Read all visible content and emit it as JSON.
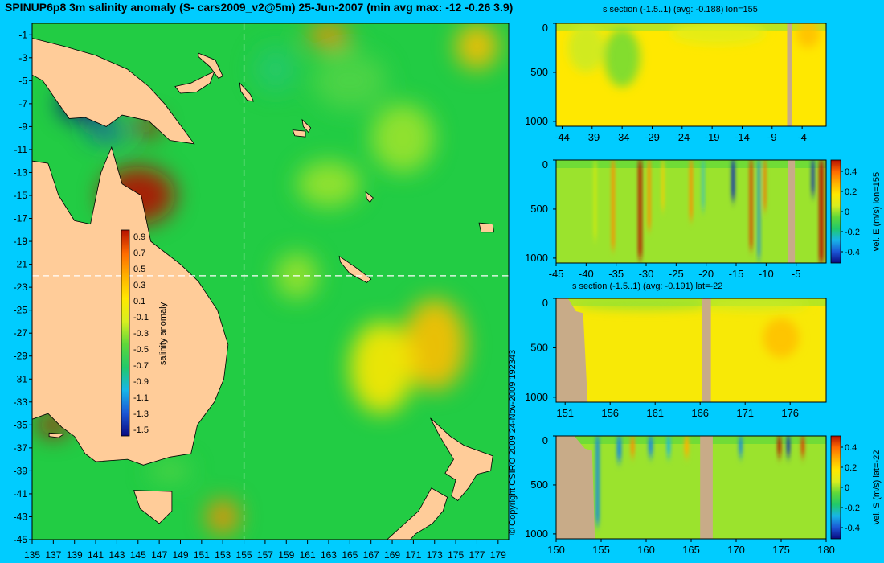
{
  "title": "SPINUP6p8 3m salinity anomaly (S- cars2009_v2@5m) 25-Jun-2007 (min avg max: -12 -0.26 3.9)",
  "copyright": "© Copyright CSIRO 2009   24-Nov-2009 192343",
  "colors": {
    "background": "#00ccff",
    "land": "#ffcc99",
    "section_land": "#c8ab88",
    "ocean_mid": "#22cc44"
  },
  "colormap": [
    "#0a0a80",
    "#1b57d6",
    "#17b6e8",
    "#21c96a",
    "#5ed83a",
    "#d8ee20",
    "#ffe800",
    "#ffb000",
    "#ff6a00",
    "#b41000"
  ],
  "chart_data": [
    {
      "type": "heatmap",
      "title": "SPINUP6p8 3m salinity anomaly (S- cars2009_v2@5m) 25-Jun-2007 (min avg max: -12 -0.26 3.9)",
      "xlabel": "",
      "ylabel": "",
      "xlim": [
        135,
        180
      ],
      "ylim": [
        -45,
        0
      ],
      "x_ticks": [
        135,
        137,
        139,
        141,
        143,
        145,
        147,
        149,
        151,
        153,
        155,
        157,
        159,
        161,
        163,
        165,
        167,
        169,
        171,
        173,
        175,
        177,
        179
      ],
      "y_ticks": [
        -1,
        -3,
        -5,
        -7,
        -9,
        -11,
        -13,
        -15,
        -17,
        -19,
        -21,
        -23,
        -25,
        -27,
        -29,
        -31,
        -33,
        -35,
        -37,
        -39,
        -41,
        -43,
        -45
      ],
      "section_lines": {
        "lon": 155,
        "lat": -22
      },
      "colorbar": {
        "label": "salinity anomaly",
        "ticks": [
          "0.9",
          "0.7",
          "0.5",
          "0.3",
          "0.1",
          "-0.1",
          "-0.3",
          "-0.5",
          "-0.7",
          "-0.9",
          "-1.1",
          "-1.3",
          "-1.5"
        ],
        "range": [
          -1.5,
          0.9
        ]
      },
      "land": [
        {
          "name": "Papua",
          "points": [
            [
              135,
              -1.3
            ],
            [
              138,
              -2
            ],
            [
              141,
              -2.8
            ],
            [
              144,
              -4
            ],
            [
              146,
              -5.5
            ],
            [
              147.5,
              -7
            ],
            [
              149.5,
              -9.5
            ],
            [
              150.3,
              -10.5
            ],
            [
              148,
              -10.2
            ],
            [
              146,
              -8.5
            ],
            [
              143.5,
              -8
            ],
            [
              142,
              -9
            ],
            [
              140,
              -8.2
            ],
            [
              138.5,
              -8.3
            ],
            [
              137.5,
              -7
            ],
            [
              136,
              -5
            ],
            [
              135,
              -4.5
            ]
          ]
        },
        {
          "name": "Australia",
          "points": [
            [
              135,
              -12
            ],
            [
              136.5,
              -12.2
            ],
            [
              137.5,
              -15
            ],
            [
              139,
              -17.2
            ],
            [
              140.5,
              -17.5
            ],
            [
              141.5,
              -13
            ],
            [
              142.5,
              -10.8
            ],
            [
              143.5,
              -14
            ],
            [
              145.3,
              -15
            ],
            [
              146.2,
              -19
            ],
            [
              149,
              -21
            ],
            [
              150.7,
              -22.5
            ],
            [
              152.5,
              -25
            ],
            [
              153.5,
              -28
            ],
            [
              153.1,
              -31
            ],
            [
              152.2,
              -33
            ],
            [
              150.6,
              -35
            ],
            [
              150,
              -37.5
            ],
            [
              148,
              -37.8
            ],
            [
              145.5,
              -38.5
            ],
            [
              144,
              -38
            ],
            [
              141,
              -38.2
            ],
            [
              140,
              -37.5
            ],
            [
              139,
              -36
            ],
            [
              137.8,
              -35.2
            ],
            [
              136.5,
              -34
            ],
            [
              135,
              -34.5
            ]
          ]
        },
        {
          "name": "Tasmania",
          "points": [
            [
              144.6,
              -40.7
            ],
            [
              148.2,
              -40.8
            ],
            [
              148.2,
              -42.5
            ],
            [
              147,
              -43.6
            ],
            [
              145.2,
              -42.3
            ]
          ]
        },
        {
          "name": "Kangaroo Is",
          "points": [
            [
              136.6,
              -35.7
            ],
            [
              138,
              -35.8
            ],
            [
              137.5,
              -36.1
            ],
            [
              136.6,
              -36
            ]
          ]
        },
        {
          "name": "NZ North",
          "points": [
            [
              172.6,
              -34.4
            ],
            [
              174.5,
              -36
            ],
            [
              175.8,
              -36.8
            ],
            [
              178.5,
              -37.7
            ],
            [
              178.3,
              -39
            ],
            [
              177,
              -39.3
            ],
            [
              176.2,
              -40.5
            ],
            [
              175.2,
              -41.6
            ],
            [
              174.6,
              -41.2
            ],
            [
              175,
              -39.8
            ],
            [
              174,
              -39.2
            ],
            [
              174.8,
              -38
            ],
            [
              173.5,
              -36
            ]
          ]
        },
        {
          "name": "NZ South",
          "points": [
            [
              172.7,
              -40.5
            ],
            [
              174.2,
              -41.3
            ],
            [
              173.8,
              -42.5
            ],
            [
              172.8,
              -43.6
            ],
            [
              171.2,
              -44.5
            ],
            [
              170.6,
              -45.1
            ],
            [
              168.5,
              -45
            ],
            [
              171.5,
              -42.5
            ]
          ]
        },
        {
          "name": "New Caledonia",
          "points": [
            [
              164,
              -20.3
            ],
            [
              165.6,
              -21.3
            ],
            [
              167,
              -22.3
            ],
            [
              166.6,
              -22.6
            ],
            [
              165,
              -21.8
            ],
            [
              164.1,
              -20.8
            ]
          ]
        },
        {
          "name": "New Britain",
          "points": [
            [
              148.5,
              -5.5
            ],
            [
              150,
              -5.2
            ],
            [
              151.5,
              -4.5
            ],
            [
              152.2,
              -4.2
            ],
            [
              151.8,
              -5.2
            ],
            [
              150.5,
              -6
            ],
            [
              149,
              -6.1
            ]
          ]
        },
        {
          "name": "New Ireland",
          "points": [
            [
              150.7,
              -2.6
            ],
            [
              152.3,
              -3.2
            ],
            [
              153,
              -4.6
            ],
            [
              152.6,
              -4.8
            ],
            [
              151.8,
              -3.8
            ],
            [
              150.7,
              -2.9
            ]
          ]
        },
        {
          "name": "Bougainville",
          "points": [
            [
              154.6,
              -5.2
            ],
            [
              155.6,
              -6.2
            ],
            [
              155.9,
              -6.8
            ],
            [
              155.3,
              -6.7
            ],
            [
              154.7,
              -5.9
            ]
          ]
        },
        {
          "name": "Guadalcanal",
          "points": [
            [
              159.6,
              -9.3
            ],
            [
              160.8,
              -9.4
            ],
            [
              160.8,
              -9.9
            ],
            [
              159.8,
              -9.8
            ]
          ]
        },
        {
          "name": "Malaita",
          "points": [
            [
              160.5,
              -8.4
            ],
            [
              161.3,
              -9.1
            ],
            [
              161.1,
              -9.5
            ],
            [
              160.6,
              -9
            ]
          ]
        },
        {
          "name": "Vanuatu Santo",
          "points": [
            [
              166.5,
              -14.7
            ],
            [
              167.2,
              -15.2
            ],
            [
              166.9,
              -15.6
            ],
            [
              166.6,
              -15.3
            ]
          ]
        },
        {
          "name": "Fiji",
          "points": [
            [
              177.2,
              -17.4
            ],
            [
              178.5,
              -17.5
            ],
            [
              178.6,
              -18.2
            ],
            [
              177.4,
              -18.2
            ]
          ]
        }
      ],
      "anomaly_patches": [
        {
          "lon": 145,
          "lat": -15,
          "value": 0.9,
          "rx": 3.5,
          "ry": 2.5
        },
        {
          "lon": 146,
          "lat": -9,
          "value": 0.9,
          "rx": 1.2,
          "ry": 0.8
        },
        {
          "lon": 140,
          "lat": -7,
          "value": -1.5,
          "rx": 2.5,
          "ry": 1.5
        },
        {
          "lon": 142,
          "lat": -9.5,
          "value": -1.3,
          "rx": 2,
          "ry": 0.6
        },
        {
          "lon": 137,
          "lat": -35,
          "value": 0.9,
          "rx": 1.5,
          "ry": 1.0
        },
        {
          "lon": 158,
          "lat": -4,
          "value": -0.7,
          "rx": 2,
          "ry": 2
        },
        {
          "lon": 165,
          "lat": -5,
          "value": -0.5,
          "rx": 3.5,
          "ry": 2.5
        },
        {
          "lon": 170,
          "lat": -10,
          "value": -0.3,
          "rx": 3,
          "ry": 3
        },
        {
          "lon": 163,
          "lat": -14,
          "value": -0.3,
          "rx": 3,
          "ry": 2
        },
        {
          "lon": 173,
          "lat": -28,
          "value": 0.3,
          "rx": 3,
          "ry": 4
        },
        {
          "lon": 168,
          "lat": -30,
          "value": 0.1,
          "rx": 3,
          "ry": 4
        },
        {
          "lon": 177,
          "lat": -2,
          "value": 0.3,
          "rx": 2,
          "ry": 2
        },
        {
          "lon": 163,
          "lat": -1,
          "value": 0.5,
          "rx": 2,
          "ry": 1
        },
        {
          "lon": 160,
          "lat": -22,
          "value": -0.3,
          "rx": 2,
          "ry": 2
        },
        {
          "lon": 148,
          "lat": -39,
          "value": -0.5,
          "rx": 2,
          "ry": 1
        },
        {
          "lon": 153,
          "lat": -43,
          "value": 0.5,
          "rx": 1.5,
          "ry": 1.5
        }
      ]
    },
    {
      "type": "heatmap",
      "title": "s section (-1.5..1) (avg: -0.188) lon=155",
      "xlim": [
        -45,
        0
      ],
      "ylim": [
        1050,
        0
      ],
      "x_ticks": [
        -44,
        -39,
        -34,
        -29,
        -24,
        -19,
        -14,
        -9,
        -4
      ],
      "y_ticks": [
        0,
        500,
        1000
      ],
      "land_bands": [
        [
          -6.5,
          -5.7
        ]
      ],
      "base_value": 0.1,
      "patches": [
        {
          "x": -34,
          "y": 350,
          "value": -0.4,
          "rx": 3,
          "ry": 300
        },
        {
          "x": -40,
          "y": 250,
          "value": -0.2,
          "rx": 3,
          "ry": 250
        },
        {
          "x": -18,
          "y": 100,
          "value": -0.1,
          "rx": 8,
          "ry": 120
        },
        {
          "x": -3,
          "y": 100,
          "value": 0.3,
          "rx": 2,
          "ry": 150
        }
      ]
    },
    {
      "type": "heatmap",
      "title": "",
      "xlim": [
        -45,
        0
      ],
      "ylim": [
        1050,
        0
      ],
      "x_ticks": [
        -45,
        -40,
        -35,
        -30,
        -25,
        -20,
        -15,
        -10,
        -5
      ],
      "y_ticks": [
        0,
        500,
        1000
      ],
      "land_bands": [
        [
          -6.3,
          -5.2
        ]
      ],
      "base_value": 0,
      "colorbar": {
        "label": "vel. E (m/s) lon=155",
        "ticks": [
          "0.4",
          "0.2",
          "0",
          "-0.2",
          "-0.4"
        ],
        "range": [
          -0.45,
          0.45
        ]
      },
      "streaks": [
        {
          "x": -35.5,
          "w": 0.5,
          "value": 0.3,
          "depth": 900
        },
        {
          "x": -31.0,
          "w": 0.6,
          "value": 0.45,
          "depth": 1000
        },
        {
          "x": -29.5,
          "w": 0.5,
          "value": 0.3,
          "depth": 700
        },
        {
          "x": -27.2,
          "w": 0.4,
          "value": 0.2,
          "depth": 500
        },
        {
          "x": -22.5,
          "w": 0.5,
          "value": 0.3,
          "depth": 600
        },
        {
          "x": -20.5,
          "w": 0.3,
          "value": -0.25,
          "depth": 500
        },
        {
          "x": -15.5,
          "w": 0.6,
          "value": -0.4,
          "depth": 400
        },
        {
          "x": -12.5,
          "w": 0.5,
          "value": 0.4,
          "depth": 900
        },
        {
          "x": -11.2,
          "w": 0.4,
          "value": -0.3,
          "depth": 1000
        },
        {
          "x": -10.2,
          "w": 0.4,
          "value": 0.35,
          "depth": 500
        },
        {
          "x": -2.2,
          "w": 0.5,
          "value": -0.4,
          "depth": 350
        },
        {
          "x": -0.8,
          "w": 0.7,
          "value": 0.45,
          "depth": 1050
        },
        {
          "x": -38.5,
          "w": 0.3,
          "value": 0.1,
          "depth": 800
        }
      ]
    },
    {
      "type": "heatmap",
      "title": "s section (-1.5..1) (avg: -0.191) lat=-22",
      "xlim": [
        150,
        180
      ],
      "ylim": [
        1050,
        0
      ],
      "x_ticks": [
        151,
        156,
        161,
        166,
        171,
        176
      ],
      "y_ticks": [
        0,
        500,
        1000
      ],
      "land_bands": [
        [
          166.2,
          167.2
        ]
      ],
      "shelf": [
        [
          150,
          0
        ],
        [
          151.3,
          0
        ],
        [
          152.2,
          130
        ],
        [
          153.0,
          150
        ],
        [
          153.5,
          1050
        ],
        [
          150,
          1050
        ]
      ],
      "base_value": 0.05,
      "patches": [
        {
          "x": 175,
          "y": 400,
          "value": 0.3,
          "rx": 2,
          "ry": 200
        },
        {
          "x": 160,
          "y": 60,
          "value": -0.3,
          "rx": 8,
          "ry": 60
        },
        {
          "x": 172,
          "y": 60,
          "value": -0.2,
          "rx": 6,
          "ry": 60
        }
      ]
    },
    {
      "type": "heatmap",
      "title": "",
      "xlim": [
        150,
        180
      ],
      "ylim": [
        1050,
        0
      ],
      "x_ticks": [
        150,
        155,
        160,
        165,
        170,
        175,
        180
      ],
      "y_ticks": [
        0,
        500,
        1000
      ],
      "land_bands": [
        [
          166.0,
          167.4
        ]
      ],
      "shelf": [
        [
          150,
          0
        ],
        [
          152.0,
          0
        ],
        [
          153.2,
          130
        ],
        [
          154.0,
          150
        ],
        [
          154.3,
          1050
        ],
        [
          150,
          1050
        ]
      ],
      "base_value": 0,
      "colorbar": {
        "label": "vel. S (m/s) lat=-22",
        "ticks": [
          "0.4",
          "0.2",
          "0",
          "-0.2",
          "-0.4"
        ],
        "range": [
          -0.45,
          0.45
        ]
      },
      "streaks": [
        {
          "x": 157.0,
          "w": 0.5,
          "value": -0.3,
          "depth": 250
        },
        {
          "x": 158.5,
          "w": 0.4,
          "value": 0.3,
          "depth": 200
        },
        {
          "x": 160.5,
          "w": 0.5,
          "value": -0.3,
          "depth": 200
        },
        {
          "x": 162.5,
          "w": 0.4,
          "value": -0.25,
          "depth": 200
        },
        {
          "x": 164.5,
          "w": 0.5,
          "value": 0.25,
          "depth": 200
        },
        {
          "x": 170.5,
          "w": 0.4,
          "value": -0.3,
          "depth": 200
        },
        {
          "x": 174.8,
          "w": 0.4,
          "value": 0.45,
          "depth": 200
        },
        {
          "x": 175.8,
          "w": 0.4,
          "value": -0.4,
          "depth": 200
        },
        {
          "x": 177.4,
          "w": 0.4,
          "value": 0.4,
          "depth": 200
        },
        {
          "x": 154.6,
          "w": 0.4,
          "value": -0.3,
          "depth": 900
        }
      ]
    }
  ]
}
